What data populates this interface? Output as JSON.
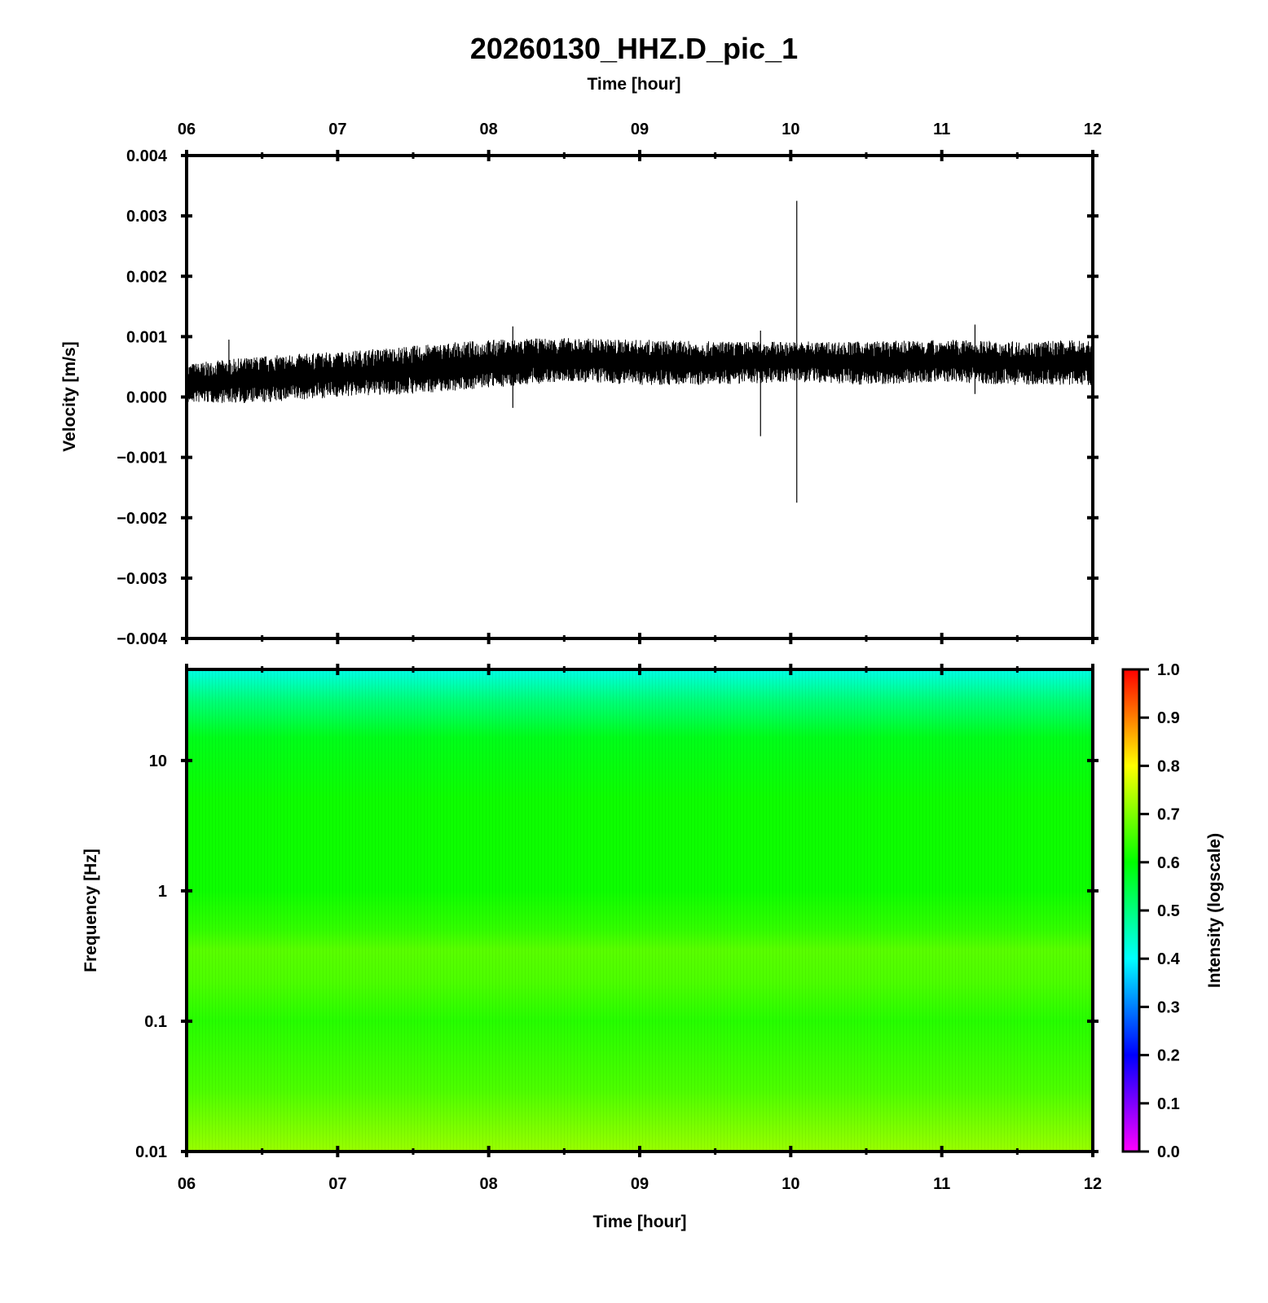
{
  "chart_data": [
    {
      "type": "line",
      "title": "20260130_HHZ.D_pic_1",
      "top_xlabel": "Time [hour]",
      "ylabel": "Velocity [m/s]",
      "xlim": [
        6,
        12
      ],
      "ylim": [
        -0.004,
        0.004
      ],
      "x_ticks": [
        "06",
        "07",
        "08",
        "09",
        "10",
        "11",
        "12"
      ],
      "y_ticks": [
        "0.004",
        "0.003",
        "0.002",
        "0.001",
        "0.000",
        "−0.001",
        "−0.002",
        "−0.003",
        "−0.004"
      ],
      "color": "#000000",
      "trace": {
        "x_hours": [
          6.0,
          6.5,
          7.0,
          7.5,
          8.0,
          8.5,
          9.0,
          9.5,
          10.0,
          10.5,
          11.0,
          11.5,
          12.0
        ],
        "upper_envelope": [
          0.00055,
          0.00068,
          0.00075,
          0.00085,
          0.00095,
          0.00098,
          0.00095,
          0.00092,
          0.00092,
          0.00092,
          0.00095,
          0.00092,
          0.00095
        ],
        "lower_envelope": [
          -0.0001,
          -0.0001,
          0.0,
          5e-05,
          0.00015,
          0.00025,
          0.0002,
          0.0002,
          0.00025,
          0.0002,
          0.00025,
          0.0002,
          0.0002
        ]
      },
      "spikes": [
        {
          "x_hour": 6.28,
          "max": 0.00095,
          "min": -5e-05
        },
        {
          "x_hour": 8.16,
          "max": 0.00117,
          "min": -0.00018
        },
        {
          "x_hour": 9.8,
          "max": 0.0011,
          "min": -0.00065
        },
        {
          "x_hour": 10.04,
          "max": 0.00325,
          "min": -0.00175
        },
        {
          "x_hour": 11.22,
          "max": 0.0012,
          "min": 5e-05
        }
      ]
    },
    {
      "type": "heatmap",
      "xlabel": "Time [hour]",
      "ylabel": "Frequency [Hz]",
      "xlim": [
        6,
        12
      ],
      "y_scale": "log",
      "ylim": [
        0.01,
        50
      ],
      "x_ticks": [
        "06",
        "07",
        "08",
        "09",
        "10",
        "11",
        "12"
      ],
      "y_ticks": [
        "10",
        "1",
        "0.1",
        "0.01"
      ],
      "colorbar": {
        "label": "Intensity (logscale)",
        "range": [
          0.0,
          1.0
        ],
        "ticks": [
          "1.0",
          "0.9",
          "0.8",
          "0.7",
          "0.6",
          "0.5",
          "0.4",
          "0.3",
          "0.2",
          "0.1",
          "0.0"
        ],
        "colors": [
          "#ff00ff",
          "#7f00ff",
          "#0000ff",
          "#007fff",
          "#00ffff",
          "#00ff7f",
          "#00ff00",
          "#7fff00",
          "#ffff00",
          "#ff7f00",
          "#ff0000"
        ]
      },
      "intensity_by_frequency": [
        {
          "freq_hz": 50,
          "intensity": 0.42
        },
        {
          "freq_hz": 30,
          "intensity": 0.5
        },
        {
          "freq_hz": 15,
          "intensity": 0.58
        },
        {
          "freq_hz": 5,
          "intensity": 0.61
        },
        {
          "freq_hz": 1,
          "intensity": 0.61
        },
        {
          "freq_hz": 0.5,
          "intensity": 0.64
        },
        {
          "freq_hz": 0.35,
          "intensity": 0.67
        },
        {
          "freq_hz": 0.2,
          "intensity": 0.66
        },
        {
          "freq_hz": 0.1,
          "intensity": 0.63
        },
        {
          "freq_hz": 0.03,
          "intensity": 0.66
        },
        {
          "freq_hz": 0.01,
          "intensity": 0.72
        }
      ]
    }
  ]
}
